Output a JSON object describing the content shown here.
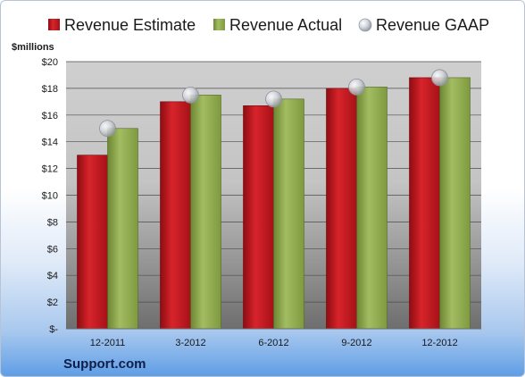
{
  "chart_data": {
    "type": "bar",
    "unit_label": "$millions",
    "categories": [
      "12-2011",
      "3-2012",
      "6-2012",
      "9-2012",
      "12-2012"
    ],
    "series": [
      {
        "name": "Revenue Estimate",
        "kind": "bar",
        "color": "#c8161d",
        "values": [
          13.0,
          17.0,
          16.7,
          18.0,
          18.8
        ]
      },
      {
        "name": "Revenue Actual",
        "kind": "bar",
        "color": "#8faa4a",
        "values": [
          15.0,
          17.5,
          17.2,
          18.1,
          18.8
        ]
      },
      {
        "name": "Revenue GAAP",
        "kind": "marker",
        "color": "#c8ccd4",
        "values": [
          15.0,
          17.5,
          17.2,
          18.1,
          18.8
        ]
      }
    ],
    "y_ticks": [
      "$-",
      "$2",
      "$4",
      "$6",
      "$8",
      "$10",
      "$12",
      "$14",
      "$16",
      "$18",
      "$20"
    ],
    "ylim": [
      0,
      20
    ],
    "grid": true,
    "legend": "top"
  },
  "brand": "Support.com"
}
